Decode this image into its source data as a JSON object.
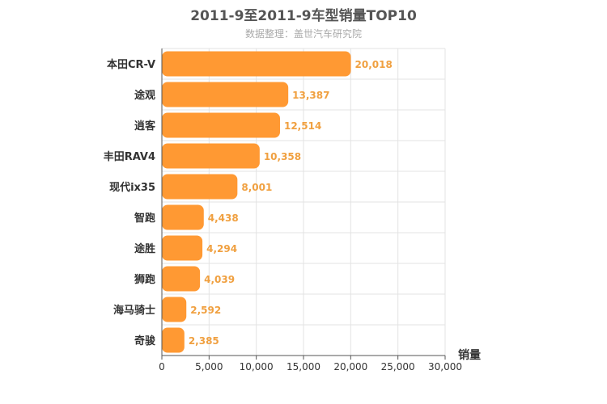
{
  "chart_data": {
    "type": "bar",
    "orientation": "horizontal",
    "title": "2011-9至2011-9车型销量TOP10",
    "subtitle": "数据整理：盖世汽车研究院",
    "xlabel": "销量",
    "ylabel": "",
    "categories": [
      "本田CR-V",
      "途观",
      "逍客",
      "丰田RAV4",
      "现代ix35",
      "智跑",
      "途胜",
      "狮跑",
      "海马骑士",
      "奇骏"
    ],
    "values": [
      20018,
      13387,
      12514,
      10358,
      8001,
      4438,
      4294,
      4039,
      2592,
      2385
    ],
    "value_labels": [
      "20,018",
      "13,387",
      "12,514",
      "10,358",
      "8,001",
      "4,438",
      "4,294",
      "4,039",
      "2,592",
      "2,385"
    ],
    "xlim": [
      0,
      30000
    ],
    "xticks": [
      0,
      5000,
      10000,
      15000,
      20000,
      25000,
      30000
    ],
    "xtick_labels": [
      "0",
      "5,000",
      "10,000",
      "15,000",
      "20,000",
      "25,000",
      "30,000"
    ],
    "grid": true,
    "bar_color": "#ff9933",
    "label_color": "#f0a040"
  }
}
